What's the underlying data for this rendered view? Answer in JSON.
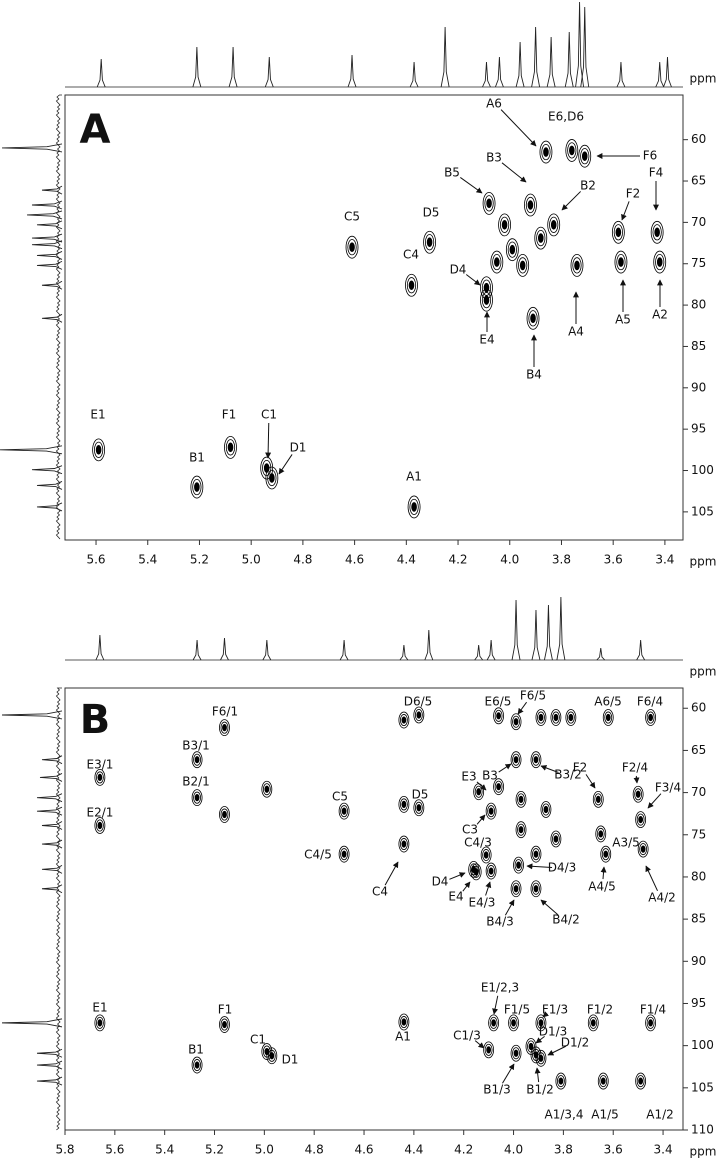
{
  "chart_data": [
    {
      "type": "contour",
      "label": "A",
      "color": "#000000",
      "x_label": "ppm",
      "y_label": "ppm",
      "xlim": [
        5.72,
        3.33
      ],
      "ylim": [
        54.6,
        108.4
      ],
      "xticks": [
        5.6,
        5.4,
        5.2,
        {
          "value": 5,
          "label": "5.0"
        },
        4.8,
        4.6,
        4.4,
        4.2,
        {
          "value": 4,
          "label": "4.0"
        },
        3.8,
        3.6,
        3.4
      ],
      "yticks": [
        60,
        65,
        70,
        75,
        80,
        85,
        90,
        95,
        100,
        105
      ],
      "peaks": [
        {
          "label": "E1",
          "x": 5.59,
          "y": 97.5
        },
        {
          "label": "B1",
          "x": 5.21,
          "y": 102.0
        },
        {
          "label": "F1",
          "x": 5.08,
          "y": 97.2
        },
        {
          "label": "C1",
          "x": 4.94,
          "y": 99.7
        },
        {
          "label": "D1",
          "x": 4.92,
          "y": 100.9
        },
        {
          "label": "A1",
          "x": 4.37,
          "y": 104.4
        },
        {
          "label": "C5",
          "x": 4.61,
          "y": 73.0
        },
        {
          "label": "C4",
          "x": 4.38,
          "y": 77.6
        },
        {
          "label": "D5",
          "x": 4.31,
          "y": 72.4
        },
        {
          "label": "D4",
          "x": 4.09,
          "y": 77.9
        },
        {
          "label": "E4",
          "x": 4.09,
          "y": 79.4
        },
        {
          "label": "B5",
          "x": 4.08,
          "y": 67.7
        },
        {
          "label": "B3",
          "x": 3.92,
          "y": 67.9
        },
        {
          "label": "B2",
          "x": 3.83,
          "y": 70.3
        },
        {
          "label": "A6",
          "x": 3.86,
          "y": 61.5
        },
        {
          "label": "E6,D6",
          "x": 3.76,
          "y": 61.3
        },
        {
          "label": "F6",
          "x": 3.71,
          "y": 62.0
        },
        {
          "label": "A4",
          "x": 3.74,
          "y": 75.2
        },
        {
          "label": "B4",
          "x": 3.91,
          "y": 81.6
        },
        {
          "label": "F2",
          "x": 3.58,
          "y": 71.2
        },
        {
          "label": "A5",
          "x": 3.57,
          "y": 74.8
        },
        {
          "label": "F4",
          "x": 3.43,
          "y": 71.2
        },
        {
          "label": "A2",
          "x": 3.42,
          "y": 74.8
        },
        {
          "x": 4.02,
          "y": 70.3
        },
        {
          "x": 3.99,
          "y": 73.3
        },
        {
          "x": 4.05,
          "y": 74.8
        },
        {
          "x": 3.95,
          "y": 75.2
        },
        {
          "x": 3.88,
          "y": 71.9
        }
      ],
      "top_projection": {
        "x": [
          5.58,
          5.21,
          5.07,
          4.93,
          4.61,
          4.37,
          4.25,
          4.09,
          4.04,
          3.96,
          3.9,
          3.84,
          3.77,
          3.73,
          3.71,
          3.57,
          3.42,
          3.39
        ],
        "intensity": [
          28,
          40,
          40,
          30,
          32,
          25,
          60,
          25,
          30,
          45,
          60,
          50,
          55,
          85,
          80,
          25,
          25,
          30
        ]
      },
      "left_projection": {
        "y": [
          61.0,
          66.1,
          67.9,
          69.1,
          70.3,
          71.9,
          72.7,
          74.0,
          75.2,
          77.6,
          81.6,
          97.5,
          99.9,
          101.8,
          104.4
        ],
        "intensity": [
          60,
          20,
          30,
          35,
          25,
          30,
          30,
          25,
          25,
          20,
          20,
          62,
          30,
          25,
          25
        ]
      }
    },
    {
      "type": "contour",
      "label": "B",
      "color": "#000000",
      "x_label": "ppm",
      "y_label": "ppm",
      "xlim": [
        5.8,
        3.32
      ],
      "ylim": [
        57.6,
        110
      ],
      "xticks": [
        5.8,
        5.6,
        5.4,
        5.2,
        {
          "value": 5,
          "label": "5.0"
        },
        4.8,
        4.6,
        4.4,
        4.2,
        {
          "value": 4,
          "label": "4.0"
        },
        3.8,
        3.6,
        3.4
      ],
      "yticks": [
        60,
        65,
        70,
        75,
        80,
        85,
        90,
        95,
        100,
        105,
        110
      ],
      "peaks": [
        {
          "label": "E1",
          "x": 5.66,
          "y": 97.3
        },
        {
          "label": "B1",
          "x": 5.27,
          "y": 102.3
        },
        {
          "label": "F1",
          "x": 5.16,
          "y": 97.5
        },
        {
          "label": "C1",
          "x": 4.99,
          "y": 100.7
        },
        {
          "label": "D1",
          "x": 4.97,
          "y": 101.2
        },
        {
          "label": "A1",
          "x": 4.44,
          "y": 97.2
        },
        {
          "label": "F6/1",
          "x": 5.16,
          "y": 62.3
        },
        {
          "label": "B3/1",
          "x": 5.27,
          "y": 66.1
        },
        {
          "label": "B2/1",
          "x": 5.27,
          "y": 70.6
        },
        {
          "label": "E3/1",
          "x": 5.66,
          "y": 68.2
        },
        {
          "label": "E2/1",
          "x": 5.66,
          "y": 73.9
        },
        {
          "label": "C5",
          "x": 4.68,
          "y": 72.2
        },
        {
          "label": "C4/5",
          "x": 4.68,
          "y": 77.3
        },
        {
          "label": "C4",
          "x": 4.44,
          "y": 76.1
        },
        {
          "label": "D5",
          "x": 4.38,
          "y": 71.8
        },
        {
          "label": "D6/5",
          "x": 4.38,
          "y": 60.8
        },
        {
          "label": "E6/5",
          "x": 4.06,
          "y": 60.9
        },
        {
          "label": "F6/5",
          "x": 3.99,
          "y": 61.6
        },
        {
          "label": "A6/5",
          "x": 3.62,
          "y": 61.1
        },
        {
          "label": "F6/4",
          "x": 3.45,
          "y": 61.1
        },
        {
          "label": "E3",
          "x": 4.14,
          "y": 69.9
        },
        {
          "label": "B3",
          "x": 3.99,
          "y": 66.1
        },
        {
          "label": "B3/2",
          "x": 3.91,
          "y": 66.1
        },
        {
          "label": "C3",
          "x": 4.09,
          "y": 72.2
        },
        {
          "label": "C4/3",
          "x": 4.11,
          "y": 77.4
        },
        {
          "label": "D4",
          "x": 4.16,
          "y": 79.1
        },
        {
          "label": "E4",
          "x": 4.15,
          "y": 79.4
        },
        {
          "label": "E4/3",
          "x": 4.09,
          "y": 79.3
        },
        {
          "label": "D4/3",
          "x": 3.98,
          "y": 78.6
        },
        {
          "label": "B4/3",
          "x": 3.99,
          "y": 81.4
        },
        {
          "label": "B4/2",
          "x": 3.91,
          "y": 81.4
        },
        {
          "label": "F2",
          "x": 3.66,
          "y": 70.8
        },
        {
          "label": "F2/4",
          "x": 3.5,
          "y": 70.2
        },
        {
          "label": "F3/4",
          "x": 3.49,
          "y": 73.2
        },
        {
          "label": "A3/5",
          "x": 3.65,
          "y": 74.9
        },
        {
          "label": "A4/5",
          "x": 3.63,
          "y": 77.3
        },
        {
          "label": "A4/2",
          "x": 3.48,
          "y": 76.7
        },
        {
          "label": "E1/2,3",
          "x": 4.08,
          "y": 97.3
        },
        {
          "label": "F1/5",
          "x": 4.0,
          "y": 97.3
        },
        {
          "label": "F1/3",
          "x": 3.89,
          "y": 97.3
        },
        {
          "label": "D1/3",
          "x": 3.93,
          "y": 100.1
        },
        {
          "label": "C1/3",
          "x": 4.1,
          "y": 100.5
        },
        {
          "label": "B1/3",
          "x": 3.99,
          "y": 100.9
        },
        {
          "label": "B1/2",
          "x": 3.91,
          "y": 101.1
        },
        {
          "label": "D1/2",
          "x": 3.89,
          "y": 101.5
        },
        {
          "label": "F1/2",
          "x": 3.68,
          "y": 97.3
        },
        {
          "label": "F1/4",
          "x": 3.45,
          "y": 97.3
        },
        {
          "label": "A1/3,4",
          "x": 3.81,
          "y": 104.2
        },
        {
          "label": "A1/5",
          "x": 3.64,
          "y": 104.2
        },
        {
          "label": "A1/2",
          "x": 3.49,
          "y": 104.2
        },
        {
          "x": 3.83,
          "y": 61.1
        },
        {
          "x": 3.89,
          "y": 61.1
        },
        {
          "x": 3.77,
          "y": 61.1
        },
        {
          "x": 5.16,
          "y": 72.6
        },
        {
          "x": 4.99,
          "y": 69.6
        },
        {
          "x": 4.06,
          "y": 69.3
        },
        {
          "x": 3.97,
          "y": 70.8
        },
        {
          "x": 3.87,
          "y": 72.0
        },
        {
          "x": 3.97,
          "y": 74.4
        },
        {
          "x": 3.83,
          "y": 75.5
        },
        {
          "x": 3.91,
          "y": 77.3
        },
        {
          "x": 4.44,
          "y": 71.4
        },
        {
          "x": 4.44,
          "y": 61.4
        }
      ],
      "top_projection": {
        "x": [
          5.66,
          5.27,
          5.16,
          4.99,
          4.68,
          4.44,
          4.34,
          4.14,
          4.09,
          3.99,
          3.91,
          3.86,
          3.81,
          3.65,
          3.49
        ],
        "intensity": [
          25,
          20,
          22,
          20,
          20,
          15,
          30,
          15,
          20,
          60,
          50,
          55,
          63,
          12,
          20
        ]
      },
      "left_projection": {
        "y": [
          60.8,
          66.1,
          68.2,
          70.6,
          72.2,
          73.9,
          76.1,
          79.1,
          81.4,
          97.3,
          100.9,
          102.3,
          104.2
        ],
        "intensity": [
          60,
          20,
          22,
          25,
          25,
          20,
          20,
          20,
          20,
          60,
          25,
          25,
          25
        ]
      }
    }
  ]
}
